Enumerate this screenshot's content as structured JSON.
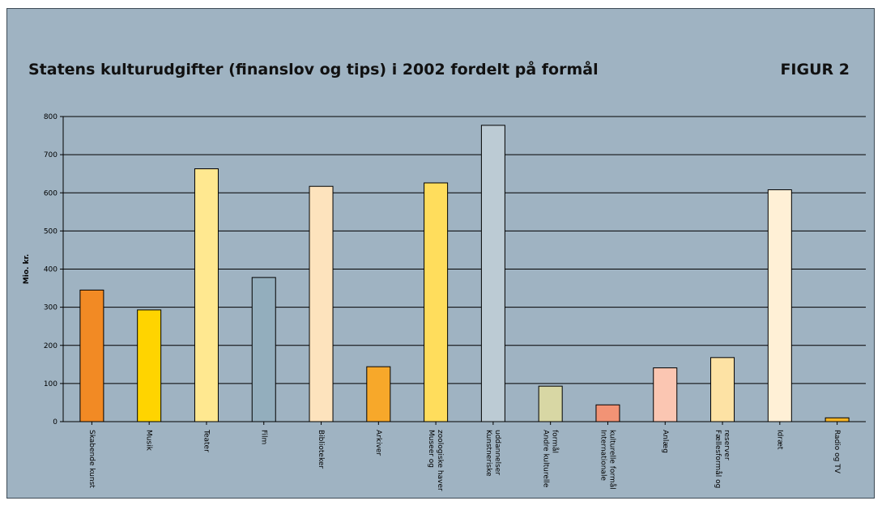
{
  "title": "Statens kulturudgifter (finanslov og tips) i 2002 fordelt på formål",
  "figure_label": "FIGUR 2",
  "chart_data": {
    "type": "bar",
    "title": "Statens kulturudgifter (finanslov og tips) i 2002 fordelt på formål",
    "ylabel": "Mio. kr.",
    "xlabel": "",
    "ylim": [
      0,
      800
    ],
    "yticks": [
      0,
      100,
      200,
      300,
      400,
      500,
      600,
      700,
      800
    ],
    "grid": true,
    "categories": [
      "Skabende kunst",
      "Musik",
      "Teater",
      "Film",
      "Biblioteker",
      "Arkiver",
      "Museer og zoologiske haver",
      "Kunstneriske uddannelser",
      "Andre kulturelle formål",
      "Internationale kulturelle formål",
      "Anlæg",
      "Fællesformål og reserver",
      "Idræt",
      "Radio og TV"
    ],
    "category_lines": [
      [
        "Skabende kunst"
      ],
      [
        "Musik"
      ],
      [
        "Teater"
      ],
      [
        "Film"
      ],
      [
        "Biblioteker"
      ],
      [
        "Arkiver"
      ],
      [
        "Museer og",
        "zoologiske haver"
      ],
      [
        "Kunstneriske",
        "uddannelser"
      ],
      [
        "Andre kulturelle",
        "formål"
      ],
      [
        "Internationale",
        "kulturelle formål"
      ],
      [
        "Anlæg"
      ],
      [
        "Fællesformål og",
        "reserver"
      ],
      [
        "Idræt"
      ],
      [
        "Radio og TV"
      ]
    ],
    "values": [
      345,
      293,
      663,
      378,
      617,
      144,
      626,
      777,
      93,
      44,
      141,
      168,
      608,
      10
    ],
    "colors": [
      "#f28a24",
      "#ffd400",
      "#ffe890",
      "#93aebd",
      "#fde3bd",
      "#f7a82a",
      "#ffdd5c",
      "#bccbd4",
      "#d8d7a4",
      "#f29375",
      "#fbc6b2",
      "#fde2a4",
      "#fff0d6",
      "#f7b526"
    ]
  }
}
